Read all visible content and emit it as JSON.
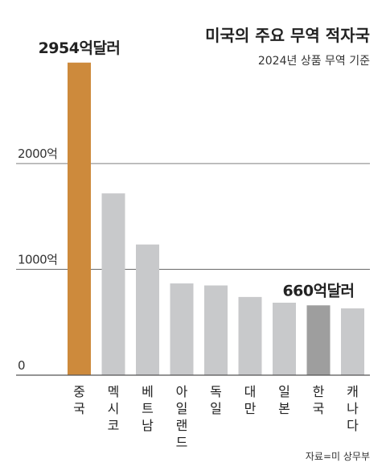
{
  "chart_data": {
    "type": "bar",
    "title": "미국의 주요 무역 적자국",
    "subtitle": "2024년 상품 무역 기준",
    "categories": [
      "중국",
      "멕시코",
      "베트남",
      "아일랜드",
      "독일",
      "대만",
      "일본",
      "한국",
      "캐나다"
    ],
    "values": [
      2954,
      1718,
      1235,
      867,
      848,
      739,
      685,
      660,
      631
    ],
    "ylim": [
      0,
      3150
    ],
    "yticks": [
      {
        "value": 0,
        "label": "0"
      },
      {
        "value": 1000,
        "label": "1000억"
      },
      {
        "value": 2000,
        "label": "2000억"
      }
    ],
    "grid": true,
    "bar_colors": [
      "#cd8a3c",
      "#c8c9cb",
      "#c8c9cb",
      "#c8c9cb",
      "#c8c9cb",
      "#c8c9cb",
      "#c8c9cb",
      "#9e9e9e",
      "#c8c9cb"
    ],
    "annotations": [
      {
        "category": "중국",
        "text": "2954억달러"
      },
      {
        "category": "한국",
        "text": "660억달러"
      }
    ],
    "source": "자료=미 상무부"
  }
}
